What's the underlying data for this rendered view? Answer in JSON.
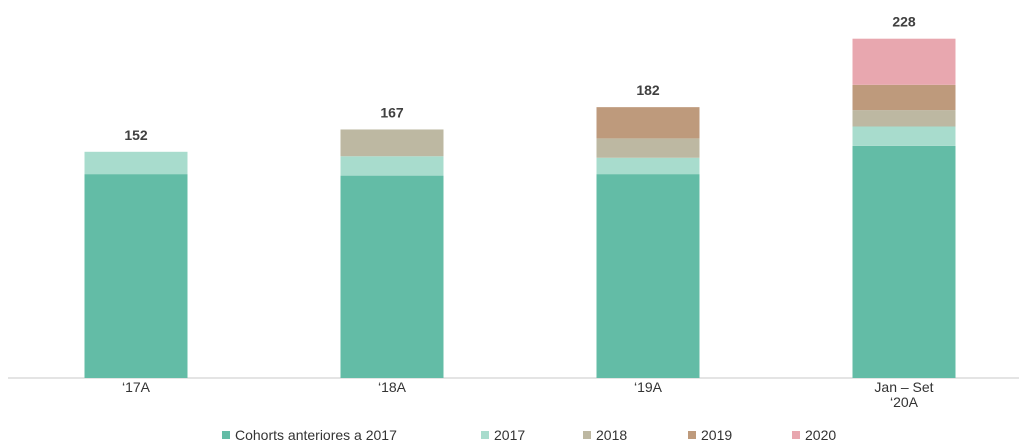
{
  "chart_data": {
    "type": "stacked_bar",
    "categories": [
      "‘17A",
      "‘18A",
      "‘19A",
      "Jan – Set\n‘20A"
    ],
    "series": [
      {
        "name": "Cohorts anteriores a 2017",
        "color": "#63bca6",
        "values": [
          137,
          136,
          137,
          156
        ]
      },
      {
        "name": "2017",
        "color": "#a8dccd",
        "values": [
          15,
          13,
          11,
          13
        ]
      },
      {
        "name": "2018",
        "color": "#bdb8a2",
        "values": [
          null,
          18,
          13,
          11
        ]
      },
      {
        "name": "2019",
        "color": "#be9a7c",
        "values": [
          null,
          null,
          21,
          17
        ]
      },
      {
        "name": "2020",
        "color": "#e8a7af",
        "values": [
          null,
          null,
          null,
          31
        ]
      }
    ],
    "totals": [
      152,
      167,
      182,
      228
    ],
    "ylim": [
      0,
      254
    ]
  }
}
